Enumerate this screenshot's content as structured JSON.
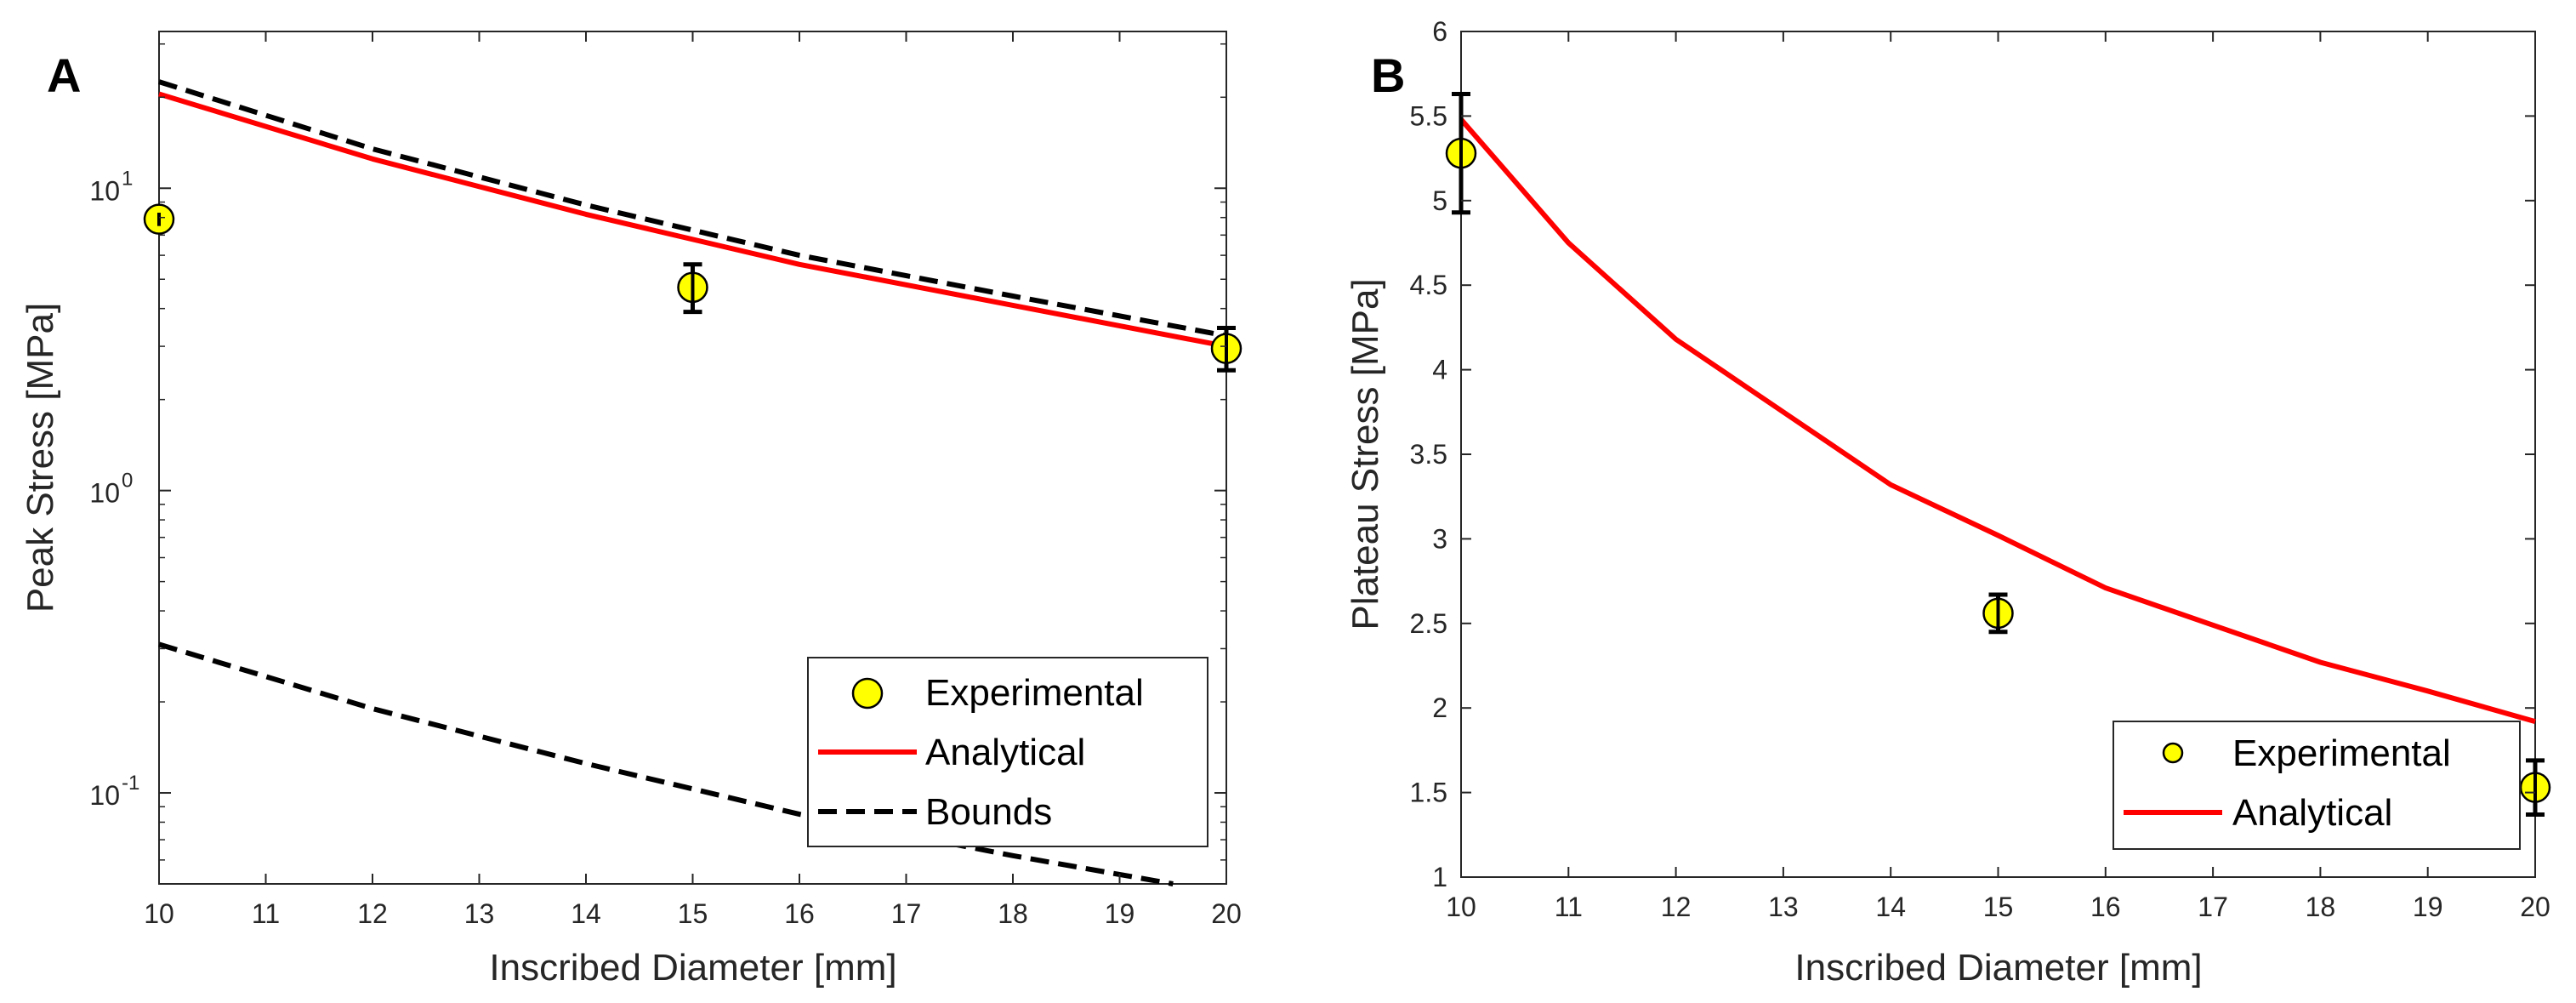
{
  "chart_data": [
    {
      "panel_label": "A",
      "type": "line",
      "yscale": "log",
      "xlabel": "Inscribed Diameter [mm]",
      "ylabel": "Peak Stress [MPa]",
      "xlim": [
        10,
        20
      ],
      "ylim": [
        0.05,
        33
      ],
      "xticks": [
        "10",
        "11",
        "12",
        "13",
        "14",
        "15",
        "16",
        "17",
        "18",
        "19",
        "20"
      ],
      "yticks": [
        {
          "value": 0.1,
          "base": "10",
          "exp": "-1"
        },
        {
          "value": 1,
          "base": "10",
          "exp": "0"
        },
        {
          "value": 10,
          "base": "10",
          "exp": "1"
        }
      ],
      "legend_position": "bottom-right",
      "series": [
        {
          "name": "Experimental",
          "kind": "scatter",
          "color": "#ffff00",
          "x": [
            10,
            15,
            20
          ],
          "y": [
            7.9,
            4.7,
            2.95
          ],
          "err_low": [
            7.5,
            3.9,
            2.5
          ],
          "err_high": [
            8.3,
            5.6,
            3.45
          ]
        },
        {
          "name": "Analytical",
          "kind": "line",
          "color": "#ff0000",
          "x": [
            10,
            12,
            14,
            16,
            18,
            20
          ],
          "y": [
            20.5,
            12.5,
            8.2,
            5.6,
            4.1,
            3.0
          ]
        },
        {
          "name": "Bounds",
          "kind": "line",
          "style": "dashed",
          "color": "#000000",
          "x": [
            10,
            12,
            14,
            16,
            18,
            20
          ],
          "y": [
            22.5,
            13.5,
            8.8,
            6.0,
            4.4,
            3.25
          ]
        },
        {
          "name": "Bounds",
          "kind": "line",
          "style": "dashed",
          "color": "#000000",
          "in_legend": false,
          "x": [
            10,
            12,
            14,
            16,
            18,
            19.5
          ],
          "y": [
            0.31,
            0.19,
            0.125,
            0.085,
            0.062,
            0.05
          ]
        }
      ]
    },
    {
      "panel_label": "B",
      "type": "line",
      "yscale": "linear",
      "xlabel": "Inscribed Diameter [mm]",
      "ylabel": "Plateau Stress [MPa]",
      "xlim": [
        10,
        20
      ],
      "ylim": [
        1,
        6
      ],
      "xticks": [
        "10",
        "11",
        "12",
        "13",
        "14",
        "15",
        "16",
        "17",
        "18",
        "19",
        "20"
      ],
      "yticks": [
        "1",
        "1.5",
        "2",
        "2.5",
        "3",
        "3.5",
        "4",
        "4.5",
        "5",
        "5.5",
        "6"
      ],
      "legend_position": "bottom-right",
      "series": [
        {
          "name": "Experimental",
          "kind": "scatter",
          "color": "#ffff00",
          "x": [
            10,
            15,
            20
          ],
          "y": [
            5.28,
            2.56,
            1.53
          ],
          "err_low": [
            4.93,
            2.45,
            1.37
          ],
          "err_high": [
            5.63,
            2.67,
            1.69
          ]
        },
        {
          "name": "Analytical",
          "kind": "line",
          "color": "#ff0000",
          "x": [
            10,
            11,
            12,
            13,
            14,
            15,
            16,
            17,
            18,
            19,
            20
          ],
          "y": [
            5.48,
            4.75,
            4.18,
            3.75,
            3.32,
            3.02,
            2.71,
            2.49,
            2.27,
            2.1,
            1.92
          ]
        }
      ]
    }
  ]
}
